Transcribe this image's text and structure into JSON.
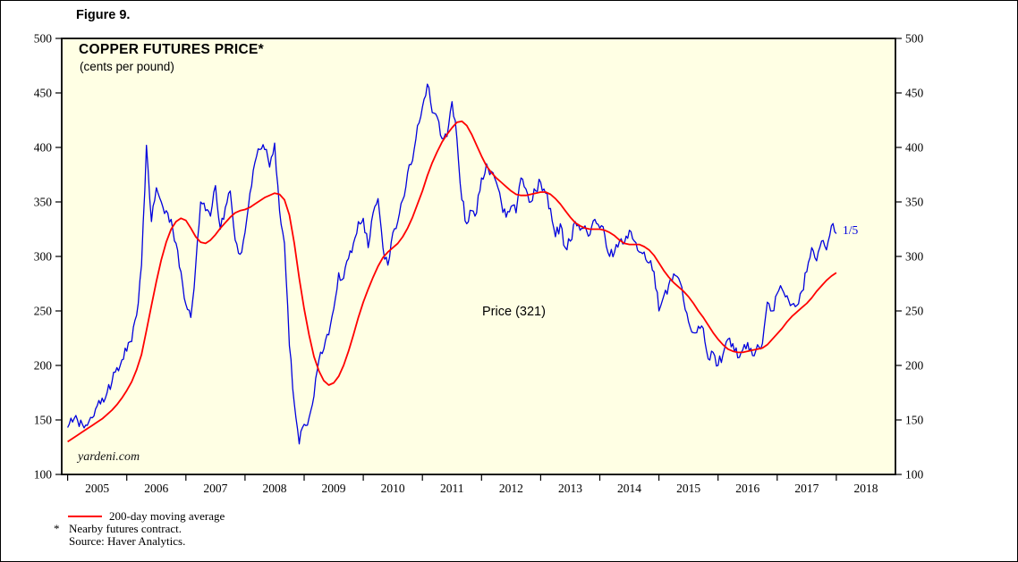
{
  "figure": {
    "label": "Figure 9."
  },
  "chart_data": {
    "type": "line",
    "title": "COPPER FUTURES PRICE*",
    "subtitle": "(cents per pound)",
    "ylabel": "cents per pound",
    "ylim": [
      100,
      500
    ],
    "yticks": [
      100,
      150,
      200,
      250,
      300,
      350,
      400,
      450,
      500
    ],
    "xlim": [
      2004.9,
      2019.0
    ],
    "x_start": 2005.0,
    "x_interval_years": 0.0833333,
    "year_tick_start": 2005,
    "year_labels": [
      "2005",
      "2006",
      "2007",
      "2008",
      "2009",
      "2010",
      "2011",
      "2012",
      "2013",
      "2014",
      "2015",
      "2016",
      "2017",
      "2018"
    ],
    "plot_bg": "#ffffe4",
    "grid": "off",
    "legend_position": "below-left",
    "series": [
      {
        "name": "Price",
        "color": "#0000dd",
        "style": "daily",
        "values": [
          143,
          148,
          150,
          146,
          145,
          152,
          163,
          170,
          175,
          185,
          198,
          205,
          213,
          222,
          246,
          292,
          402,
          332,
          363,
          350,
          342,
          334,
          312,
          286,
          256,
          244,
          292,
          350,
          342,
          337,
          365,
          325,
          345,
          360,
          315,
          302,
          322,
          358,
          386,
          398,
          398,
          382,
          404,
          342,
          312,
          218,
          165,
          128,
          146,
          152,
          172,
          205,
          215,
          228,
          252,
          285,
          280,
          298,
          312,
          332,
          335,
          308,
          340,
          353,
          308,
          292,
          322,
          332,
          352,
          377,
          388,
          420,
          437,
          458,
          432,
          428,
          408,
          410,
          442,
          408,
          352,
          330,
          342,
          340,
          372,
          385,
          378,
          368,
          350,
          336,
          346,
          340,
          372,
          362,
          350,
          360,
          368,
          358,
          344,
          318,
          330,
          308,
          314,
          332,
          324,
          328,
          320,
          334,
          326,
          320,
          300,
          304,
          314,
          312,
          324,
          314,
          304,
          304,
          294,
          286,
          250,
          264,
          274,
          284,
          280,
          260,
          240,
          230,
          236,
          234,
          206,
          212,
          200,
          210,
          224,
          220,
          207,
          214,
          221,
          209,
          219,
          220,
          258,
          250,
          266,
          270,
          264,
          256,
          255,
          268,
          286,
          308,
          296,
          314,
          306,
          328,
          321
        ]
      },
      {
        "name": "200-day moving average",
        "color": "#ff0000",
        "style": "smooth",
        "values": [
          130,
          133,
          136,
          139,
          142,
          145,
          148,
          151,
          155,
          159,
          164,
          170,
          177,
          185,
          196,
          210,
          232,
          255,
          277,
          297,
          313,
          325,
          332,
          335,
          333,
          326,
          318,
          313,
          312,
          315,
          320,
          326,
          331,
          336,
          340,
          342,
          343,
          345,
          348,
          351,
          354,
          356,
          358,
          357,
          352,
          338,
          312,
          280,
          252,
          228,
          208,
          195,
          186,
          182,
          184,
          190,
          200,
          213,
          228,
          244,
          258,
          270,
          281,
          291,
          299,
          304,
          308,
          312,
          318,
          326,
          336,
          348,
          360,
          374,
          386,
          396,
          405,
          412,
          418,
          423,
          424,
          420,
          412,
          402,
          392,
          383,
          377,
          372,
          368,
          364,
          360,
          357,
          356,
          356,
          357,
          358,
          359,
          359,
          357,
          353,
          348,
          342,
          336,
          331,
          328,
          326,
          325,
          325,
          325,
          324,
          322,
          319,
          315,
          312,
          311,
          311,
          311,
          309,
          306,
          301,
          294,
          287,
          281,
          276,
          272,
          268,
          263,
          257,
          250,
          244,
          237,
          230,
          224,
          219,
          215,
          213,
          212,
          212,
          213,
          214,
          215,
          216,
          219,
          224,
          229,
          234,
          240,
          245,
          249,
          253,
          257,
          262,
          268,
          273,
          278,
          282,
          285
        ]
      }
    ],
    "annotations": {
      "series_label": "Price (321)",
      "latest_label": "1/5",
      "watermark": "yardeni.com"
    }
  },
  "legend": {
    "items": [
      {
        "label": "200-day moving average",
        "color": "#ff0000"
      }
    ]
  },
  "footnotes": {
    "star": "*",
    "note": "Nearby futures contract.",
    "source": "Source: Haver Analytics."
  }
}
